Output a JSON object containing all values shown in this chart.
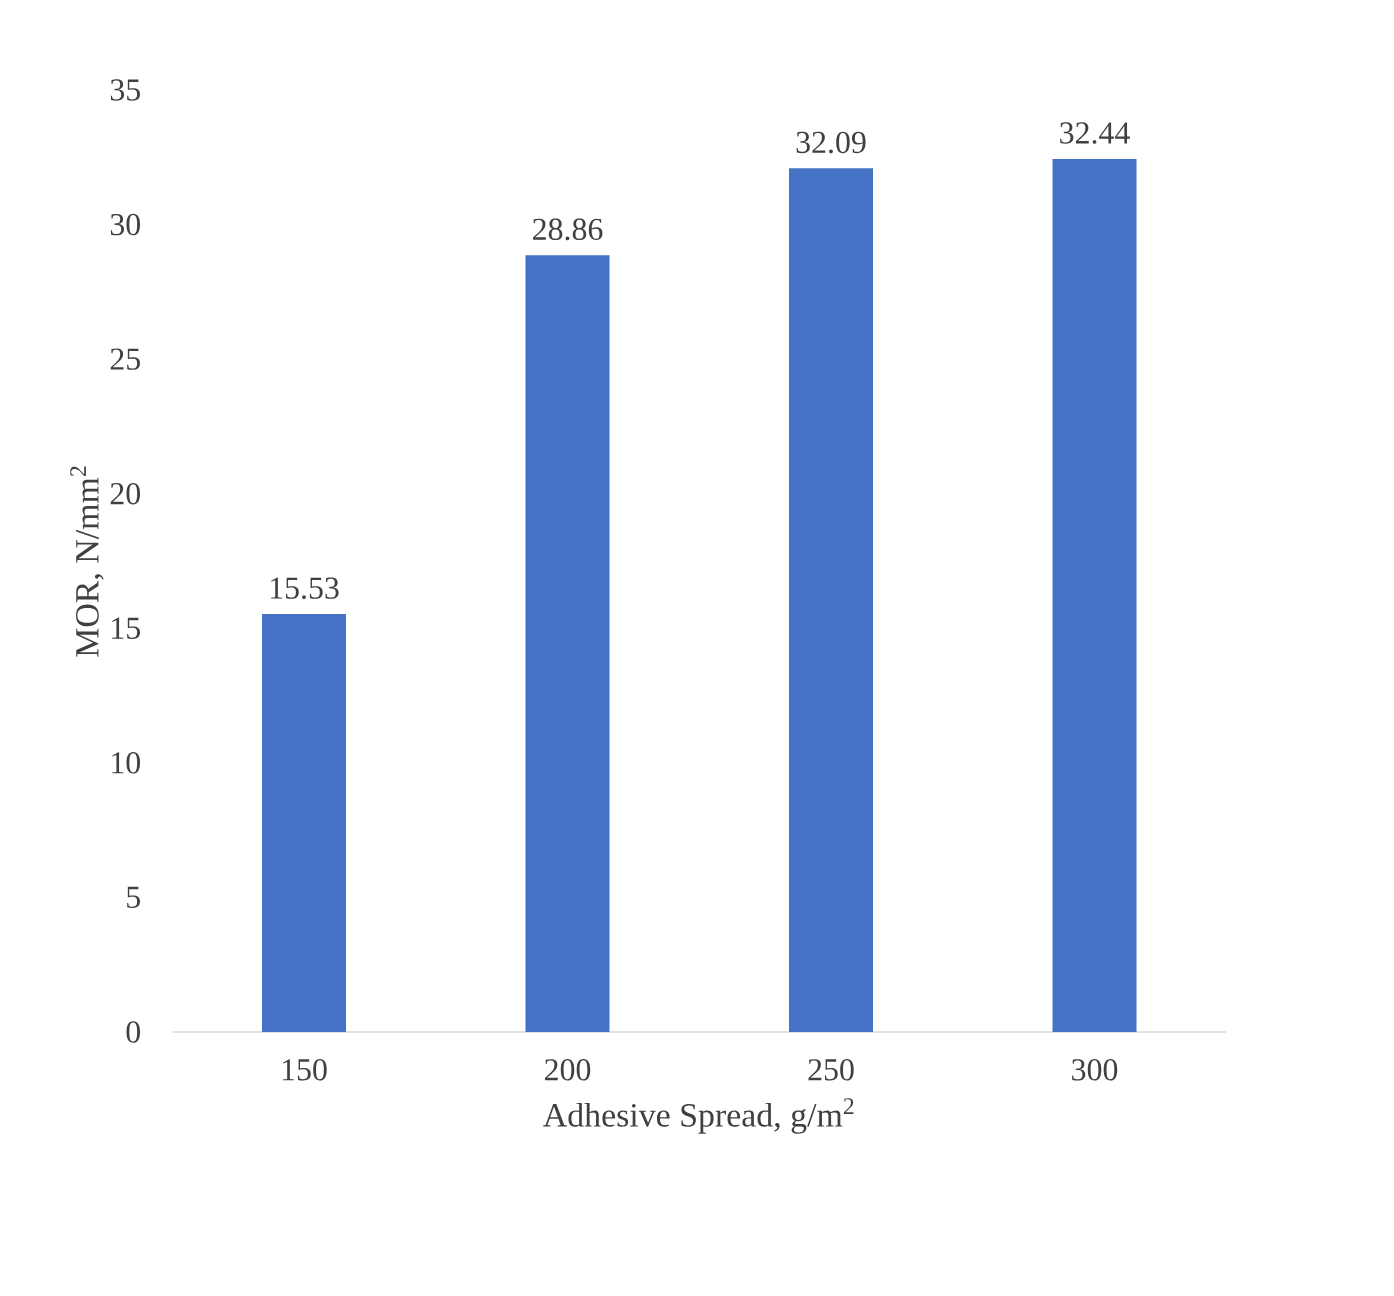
{
  "chart_data": {
    "type": "bar",
    "xlabel": "Adhesive Spread, g/m$^{2}$",
    "ylabel": "MOR, N/mm$^{2}$",
    "categories": [
      "150",
      "200",
      "250",
      "300"
    ],
    "values": [
      15.53,
      28.86,
      32.09,
      32.44
    ],
    "color": "#4472c4",
    "data_labels": true,
    "ylim": [
      0,
      35
    ],
    "yticks": [
      0,
      5,
      10,
      15,
      20,
      25,
      30,
      35
    ]
  }
}
